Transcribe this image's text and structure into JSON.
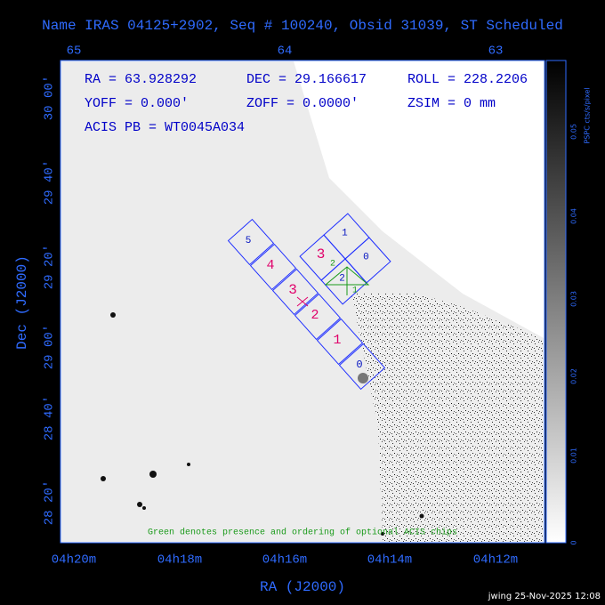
{
  "title": "Name IRAS 04125+2902, Seq # 100240, Obsid 31039, ST Scheduled",
  "top_axis": {
    "ticks": [
      "65",
      "64",
      "63"
    ]
  },
  "x_axis": {
    "label": "RA (J2000)",
    "ticks": [
      "04h20m",
      "04h18m",
      "04h16m",
      "04h14m",
      "04h12m"
    ]
  },
  "y_axis": {
    "label": "Dec (J2000)",
    "ticks": [
      "30 00'",
      "29 40'",
      "29 20'",
      "29 00'",
      "28 40'",
      "28 20'"
    ]
  },
  "info": {
    "ra": "RA = 63.928292",
    "dec": "DEC = 29.166617",
    "roll": "ROLL = 228.2206",
    "yoff": "YOFF =   0.000'",
    "zoff": "ZOFF =  0.0000'",
    "zsim": "ZSIM = 0 mm",
    "acis_pb": "ACIS PB = WT0045A034"
  },
  "chips": {
    "i_array": [
      "1",
      "0",
      "3",
      "2"
    ],
    "s_array": [
      "5",
      "4",
      "3",
      "2",
      "1",
      "0"
    ],
    "optional": [
      "2",
      "1"
    ]
  },
  "note": "Green denotes presence and ordering of optional ACIS chips",
  "colorbar": {
    "label": "PSPC cts/s/pixel",
    "ticks": [
      "0",
      "0.01",
      "0.02",
      "0.03",
      "0.04",
      "0.05"
    ]
  },
  "footer": "jwing 25-Nov-2025 12:08"
}
